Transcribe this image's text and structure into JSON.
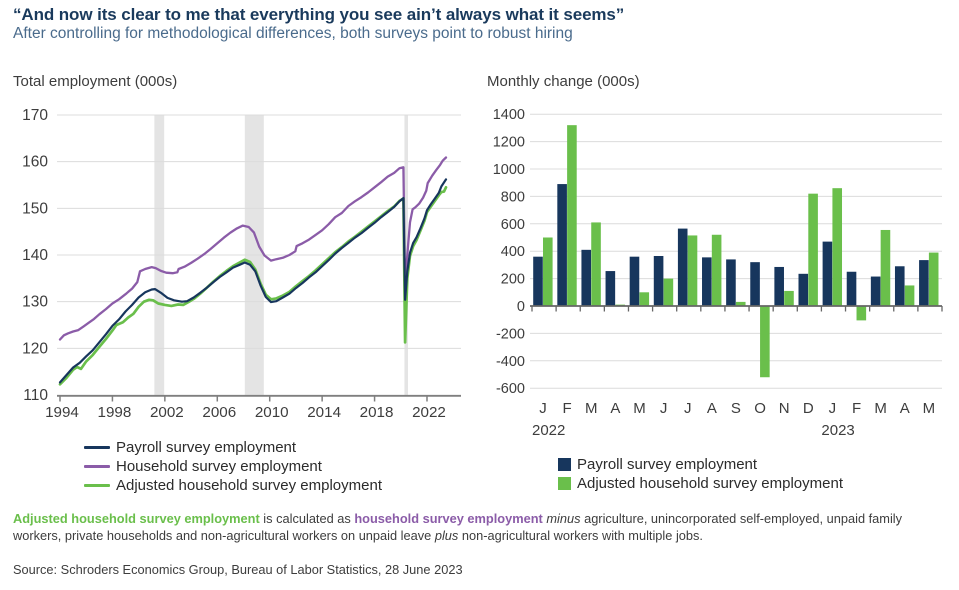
{
  "header": {
    "title": "“And now its clear to me that everything you see ain’t always what it seems”",
    "subtitle": "After controlling for methodological differences, both surveys point to robust hiring"
  },
  "colors": {
    "navy": "#17365d",
    "purple": "#8b5ca8",
    "green": "#6abf4b",
    "grid": "#dcdcdc",
    "band": "#e4e4e4",
    "axis": "#7f7f7f",
    "tick_text": "#3d3d3d"
  },
  "chart_data": [
    {
      "type": "line",
      "title": "Total employment (000s)",
      "ylim": [
        110,
        170
      ],
      "yticks": [
        110,
        120,
        130,
        140,
        150,
        160,
        170
      ],
      "xticks": [
        1994,
        1998,
        2002,
        2006,
        2010,
        2014,
        2018,
        2022
      ],
      "xlim": [
        1993.7,
        2023.8
      ],
      "grid": true,
      "legend_position": "bottom",
      "recession_bands": [
        [
          2001.2,
          2001.95
        ],
        [
          2008.1,
          2009.55
        ],
        [
          2020.28,
          2020.55
        ]
      ],
      "series": [
        {
          "name": "Payroll survey employment",
          "color_key": "navy",
          "points": [
            [
              1994.0,
              112.7
            ],
            [
              1994.5,
              114.3
            ],
            [
              1995.0,
              115.9
            ],
            [
              1995.5,
              116.9
            ],
            [
              1996.0,
              118.3
            ],
            [
              1996.5,
              119.6
            ],
            [
              1997.0,
              121.3
            ],
            [
              1997.5,
              123.0
            ],
            [
              1998.0,
              124.8
            ],
            [
              1998.5,
              126.2
            ],
            [
              1999.0,
              127.9
            ],
            [
              1999.5,
              129.3
            ],
            [
              2000.0,
              130.9
            ],
            [
              2000.5,
              132.0
            ],
            [
              2001.0,
              132.6
            ],
            [
              2001.25,
              132.7
            ],
            [
              2001.7,
              131.9
            ],
            [
              2002.2,
              130.8
            ],
            [
              2002.7,
              130.3
            ],
            [
              2003.3,
              130.0
            ],
            [
              2003.7,
              130.1
            ],
            [
              2004.2,
              130.9
            ],
            [
              2004.7,
              131.9
            ],
            [
              2005.2,
              133.0
            ],
            [
              2005.7,
              134.2
            ],
            [
              2006.2,
              135.3
            ],
            [
              2006.7,
              136.3
            ],
            [
              2007.2,
              137.3
            ],
            [
              2007.7,
              137.9
            ],
            [
              2008.1,
              138.4
            ],
            [
              2008.5,
              137.9
            ],
            [
              2008.9,
              136.5
            ],
            [
              2009.3,
              133.5
            ],
            [
              2009.7,
              131.0
            ],
            [
              2010.1,
              129.9
            ],
            [
              2010.5,
              130.1
            ],
            [
              2011.0,
              130.9
            ],
            [
              2011.5,
              131.7
            ],
            [
              2012.0,
              132.9
            ],
            [
              2012.5,
              134.0
            ],
            [
              2013.0,
              135.2
            ],
            [
              2013.5,
              136.3
            ],
            [
              2014.0,
              137.6
            ],
            [
              2014.5,
              138.9
            ],
            [
              2015.0,
              140.3
            ],
            [
              2015.5,
              141.5
            ],
            [
              2016.0,
              142.6
            ],
            [
              2016.5,
              143.7
            ],
            [
              2017.0,
              144.7
            ],
            [
              2017.5,
              145.8
            ],
            [
              2018.0,
              146.9
            ],
            [
              2018.5,
              148.1
            ],
            [
              2019.0,
              149.2
            ],
            [
              2019.5,
              150.3
            ],
            [
              2019.9,
              151.5
            ],
            [
              2020.2,
              152.2
            ],
            [
              2020.33,
              130.4
            ],
            [
              2020.5,
              136.5
            ],
            [
              2020.7,
              140.5
            ],
            [
              2020.95,
              142.6
            ],
            [
              2021.2,
              143.8
            ],
            [
              2021.5,
              145.7
            ],
            [
              2021.8,
              147.8
            ],
            [
              2022.0,
              149.6
            ],
            [
              2022.3,
              150.9
            ],
            [
              2022.6,
              152.1
            ],
            [
              2022.9,
              153.3
            ],
            [
              2023.1,
              154.7
            ],
            [
              2023.45,
              156.2
            ]
          ]
        },
        {
          "name": "Household survey employment",
          "color_key": "purple",
          "points": [
            [
              1994.0,
              121.9
            ],
            [
              1994.3,
              122.8
            ],
            [
              1994.6,
              123.2
            ],
            [
              1995.0,
              123.6
            ],
            [
              1995.4,
              123.9
            ],
            [
              1995.8,
              124.7
            ],
            [
              1996.2,
              125.5
            ],
            [
              1996.6,
              126.3
            ],
            [
              1997.0,
              127.3
            ],
            [
              1997.5,
              128.4
            ],
            [
              1998.0,
              129.6
            ],
            [
              1998.5,
              130.5
            ],
            [
              1999.0,
              131.6
            ],
            [
              1999.5,
              132.8
            ],
            [
              1999.9,
              134.2
            ],
            [
              2000.1,
              136.5
            ],
            [
              2000.5,
              137.0
            ],
            [
              2001.0,
              137.4
            ],
            [
              2001.3,
              137.2
            ],
            [
              2001.7,
              136.6
            ],
            [
              2002.1,
              136.2
            ],
            [
              2002.6,
              136.1
            ],
            [
              2002.95,
              136.3
            ],
            [
              2003.05,
              137.0
            ],
            [
              2003.5,
              137.5
            ],
            [
              2004.0,
              138.3
            ],
            [
              2004.5,
              139.2
            ],
            [
              2005.0,
              140.2
            ],
            [
              2005.5,
              141.3
            ],
            [
              2006.0,
              142.5
            ],
            [
              2006.5,
              143.7
            ],
            [
              2007.0,
              144.8
            ],
            [
              2007.5,
              145.7
            ],
            [
              2007.95,
              146.3
            ],
            [
              2008.4,
              146.0
            ],
            [
              2008.8,
              144.8
            ],
            [
              2009.2,
              141.8
            ],
            [
              2009.6,
              139.9
            ],
            [
              2010.1,
              138.8
            ],
            [
              2010.5,
              139.1
            ],
            [
              2011.0,
              139.4
            ],
            [
              2011.5,
              140.0
            ],
            [
              2011.95,
              140.8
            ],
            [
              2012.05,
              141.9
            ],
            [
              2012.5,
              142.5
            ],
            [
              2013.0,
              143.3
            ],
            [
              2013.5,
              144.3
            ],
            [
              2014.0,
              145.3
            ],
            [
              2014.5,
              146.6
            ],
            [
              2015.0,
              148.1
            ],
            [
              2015.5,
              149.0
            ],
            [
              2016.0,
              150.5
            ],
            [
              2016.5,
              151.5
            ],
            [
              2017.0,
              152.4
            ],
            [
              2017.5,
              153.4
            ],
            [
              2018.0,
              154.5
            ],
            [
              2018.5,
              155.6
            ],
            [
              2019.0,
              156.8
            ],
            [
              2019.5,
              157.6
            ],
            [
              2019.9,
              158.6
            ],
            [
              2020.2,
              158.8
            ],
            [
              2020.33,
              133.4
            ],
            [
              2020.5,
              140.0
            ],
            [
              2020.7,
              147.0
            ],
            [
              2020.9,
              149.8
            ],
            [
              2021.1,
              150.2
            ],
            [
              2021.4,
              151.0
            ],
            [
              2021.7,
              152.3
            ],
            [
              2021.95,
              153.8
            ],
            [
              2022.05,
              155.4
            ],
            [
              2022.4,
              157.0
            ],
            [
              2022.7,
              158.2
            ],
            [
              2023.0,
              159.3
            ],
            [
              2023.2,
              160.2
            ],
            [
              2023.45,
              160.9
            ]
          ]
        },
        {
          "name": "Adjusted household survey employment",
          "color_key": "green",
          "points": [
            [
              1994.0,
              112.3
            ],
            [
              1994.5,
              113.7
            ],
            [
              1995.0,
              115.4
            ],
            [
              1995.3,
              116.0
            ],
            [
              1995.6,
              115.6
            ],
            [
              1996.0,
              117.2
            ],
            [
              1996.5,
              118.6
            ],
            [
              1997.0,
              120.3
            ],
            [
              1997.5,
              122.0
            ],
            [
              1998.0,
              123.8
            ],
            [
              1998.3,
              125.0
            ],
            [
              1998.8,
              125.6
            ],
            [
              1999.2,
              126.6
            ],
            [
              1999.6,
              127.4
            ],
            [
              2000.0,
              128.9
            ],
            [
              2000.4,
              130.0
            ],
            [
              2000.8,
              130.4
            ],
            [
              2001.1,
              130.3
            ],
            [
              2001.5,
              129.6
            ],
            [
              2002.0,
              129.3
            ],
            [
              2002.5,
              129.1
            ],
            [
              2003.0,
              129.4
            ],
            [
              2003.4,
              129.3
            ],
            [
              2003.8,
              129.9
            ],
            [
              2004.2,
              130.6
            ],
            [
              2004.7,
              131.7
            ],
            [
              2005.2,
              133.0
            ],
            [
              2005.7,
              134.3
            ],
            [
              2006.2,
              135.5
            ],
            [
              2006.7,
              136.6
            ],
            [
              2007.2,
              137.6
            ],
            [
              2007.7,
              138.4
            ],
            [
              2008.1,
              139.0
            ],
            [
              2008.5,
              138.5
            ],
            [
              2008.9,
              136.9
            ],
            [
              2009.3,
              133.9
            ],
            [
              2009.7,
              131.5
            ],
            [
              2010.1,
              130.5
            ],
            [
              2010.5,
              130.7
            ],
            [
              2011.0,
              131.3
            ],
            [
              2011.5,
              132.1
            ],
            [
              2012.0,
              133.3
            ],
            [
              2012.5,
              134.4
            ],
            [
              2013.0,
              135.5
            ],
            [
              2013.5,
              136.7
            ],
            [
              2014.0,
              138.0
            ],
            [
              2014.5,
              139.3
            ],
            [
              2015.0,
              140.6
            ],
            [
              2015.5,
              141.7
            ],
            [
              2016.0,
              142.9
            ],
            [
              2016.5,
              143.9
            ],
            [
              2017.0,
              145.0
            ],
            [
              2017.5,
              146.1
            ],
            [
              2018.0,
              147.2
            ],
            [
              2018.5,
              148.3
            ],
            [
              2019.0,
              149.4
            ],
            [
              2019.5,
              150.4
            ],
            [
              2019.9,
              151.6
            ],
            [
              2020.2,
              152.1
            ],
            [
              2020.33,
              121.3
            ],
            [
              2020.5,
              135.0
            ],
            [
              2020.7,
              139.8
            ],
            [
              2020.95,
              141.9
            ],
            [
              2021.2,
              143.2
            ],
            [
              2021.5,
              145.2
            ],
            [
              2021.8,
              147.3
            ],
            [
              2022.0,
              149.2
            ],
            [
              2022.3,
              150.4
            ],
            [
              2022.6,
              151.6
            ],
            [
              2022.9,
              152.8
            ],
            [
              2023.1,
              153.5
            ],
            [
              2023.3,
              153.6
            ],
            [
              2023.45,
              154.5
            ]
          ]
        }
      ]
    },
    {
      "type": "bar",
      "title": "Monthly change (000s)",
      "ylim": [
        -600,
        1400
      ],
      "yticks": [
        1400,
        1200,
        1000,
        800,
        600,
        400,
        200,
        0,
        -200,
        -400,
        -600
      ],
      "grid": true,
      "legend_position": "bottom",
      "categories": [
        "J",
        "F",
        "M",
        "A",
        "M",
        "J",
        "J",
        "A",
        "S",
        "O",
        "N",
        "D",
        "J",
        "F",
        "M",
        "A",
        "M"
      ],
      "year_labels": [
        {
          "index": 0,
          "label": "2022"
        },
        {
          "index": 12,
          "label": "2023"
        }
      ],
      "series": [
        {
          "name": "Payroll survey employment",
          "color_key": "navy",
          "values": [
            360,
            890,
            410,
            255,
            360,
            365,
            565,
            355,
            340,
            320,
            285,
            235,
            470,
            250,
            215,
            290,
            335
          ]
        },
        {
          "name": "Adjusted household survey employment",
          "color_key": "green",
          "values": [
            500,
            1320,
            610,
            10,
            100,
            200,
            515,
            520,
            30,
            -520,
            110,
            820,
            860,
            -105,
            555,
            150,
            390
          ]
        }
      ]
    }
  ],
  "footnote": {
    "segments": [
      {
        "text": "Adjusted household survey employment",
        "style": "green"
      },
      {
        "text": " is calculated as ",
        "style": "plain"
      },
      {
        "text": "household survey employment",
        "style": "purple"
      },
      {
        "text": " ",
        "style": "plain"
      },
      {
        "text": "minus",
        "style": "italic"
      },
      {
        "text": " agriculture, unincorporated self-employed, unpaid family workers, private households and non-agricultural workers on unpaid leave ",
        "style": "plain"
      },
      {
        "text": "plus",
        "style": "italic"
      },
      {
        "text": " non-agricultural workers with multiple jobs.",
        "style": "plain"
      }
    ]
  },
  "source": "Source: Schroders Economics Group, Bureau of Labor Statistics, 28 June 2023"
}
